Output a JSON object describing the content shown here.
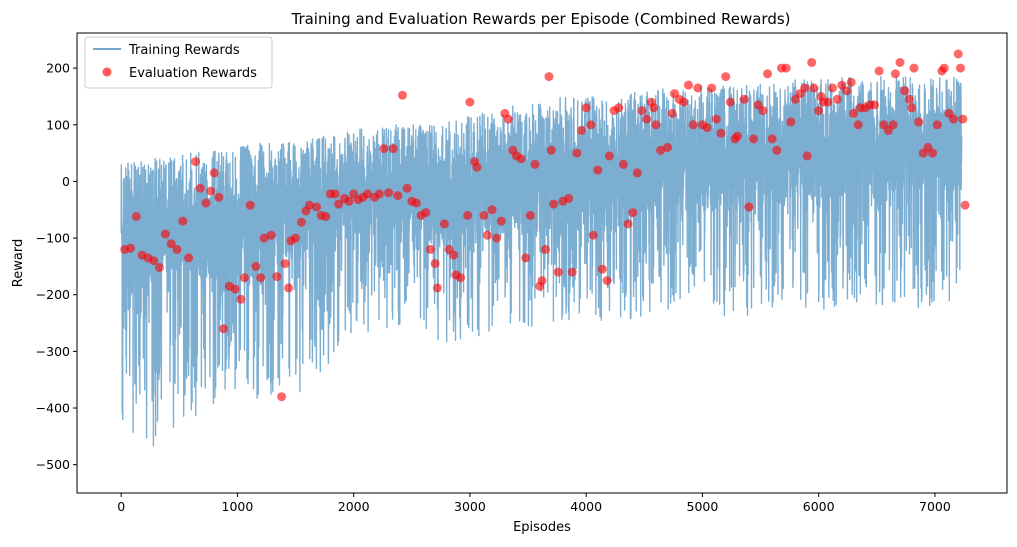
{
  "chart_data": {
    "type": "line",
    "title": "Training and Evaluation Rewards per Episode (Combined Rewards)",
    "xlabel": "Episodes",
    "ylabel": "Reward",
    "xlim": [
      -380,
      7620
    ],
    "ylim": [
      -550,
      262
    ],
    "x_ticks": [
      0,
      1000,
      2000,
      3000,
      4000,
      5000,
      6000,
      7000
    ],
    "y_ticks": [
      -500,
      -400,
      -300,
      -200,
      -100,
      0,
      100,
      200
    ],
    "grid": false,
    "legend_position": "top-left",
    "colors": {
      "training": "#75aad0",
      "evaluation": "#ff0000"
    },
    "series": [
      {
        "name": "Training Rewards",
        "kind": "line",
        "x": [
          0,
          250,
          500,
          750,
          1000,
          1250,
          1500,
          1750,
          2000,
          2250,
          2500,
          2750,
          3000,
          3250,
          3500,
          3750,
          4000,
          4250,
          4500,
          4750,
          5000,
          5250,
          5500,
          5750,
          6000,
          6250,
          6500,
          6750,
          7000,
          7230
        ],
        "center": [
          -145,
          -105,
          -85,
          -90,
          -95,
          -80,
          -60,
          -45,
          -30,
          -25,
          -25,
          -40,
          -30,
          -15,
          -15,
          -10,
          0,
          10,
          15,
          20,
          25,
          30,
          30,
          40,
          45,
          50,
          55,
          55,
          55,
          55
        ],
        "band_low": [
          -480,
          -470,
          -450,
          -400,
          -380,
          -390,
          -380,
          -330,
          -280,
          -260,
          -270,
          -290,
          -280,
          -260,
          -260,
          -250,
          -240,
          -250,
          -240,
          -250,
          -240,
          -240,
          -240,
          -230,
          -230,
          -240,
          -220,
          -230,
          -220,
          -220
        ],
        "band_high": [
          30,
          40,
          50,
          60,
          60,
          70,
          70,
          80,
          90,
          100,
          100,
          100,
          120,
          130,
          140,
          150,
          150,
          150,
          160,
          170,
          170,
          170,
          175,
          180,
          180,
          185,
          185,
          185,
          185,
          185
        ],
        "min": -513,
        "max": 198
      },
      {
        "name": "Evaluation Rewards",
        "kind": "scatter",
        "points": [
          [
            30,
            -120
          ],
          [
            80,
            -118
          ],
          [
            130,
            -62
          ],
          [
            180,
            -130
          ],
          [
            230,
            -135
          ],
          [
            280,
            -140
          ],
          [
            330,
            -152
          ],
          [
            380,
            -93
          ],
          [
            430,
            -110
          ],
          [
            480,
            -120
          ],
          [
            530,
            -70
          ],
          [
            580,
            -135
          ],
          [
            640,
            35
          ],
          [
            680,
            -12
          ],
          [
            730,
            -38
          ],
          [
            770,
            -17
          ],
          [
            800,
            15
          ],
          [
            840,
            -28
          ],
          [
            880,
            -260
          ],
          [
            930,
            -185
          ],
          [
            980,
            -190
          ],
          [
            1030,
            -208
          ],
          [
            1060,
            -170
          ],
          [
            1110,
            -42
          ],
          [
            1160,
            -150
          ],
          [
            1200,
            -170
          ],
          [
            1230,
            -100
          ],
          [
            1290,
            -95
          ],
          [
            1340,
            -168
          ],
          [
            1380,
            -380
          ],
          [
            1410,
            -145
          ],
          [
            1440,
            -188
          ],
          [
            1460,
            -105
          ],
          [
            1500,
            -100
          ],
          [
            1550,
            -72
          ],
          [
            1590,
            -52
          ],
          [
            1620,
            -42
          ],
          [
            1680,
            -45
          ],
          [
            1720,
            -60
          ],
          [
            1760,
            -62
          ],
          [
            1800,
            -22
          ],
          [
            1840,
            -22
          ],
          [
            1870,
            -40
          ],
          [
            1920,
            -30
          ],
          [
            1960,
            -35
          ],
          [
            2000,
            -22
          ],
          [
            2040,
            -32
          ],
          [
            2080,
            -28
          ],
          [
            2120,
            -22
          ],
          [
            2180,
            -28
          ],
          [
            2220,
            -22
          ],
          [
            2260,
            58
          ],
          [
            2300,
            -20
          ],
          [
            2340,
            58
          ],
          [
            2380,
            -25
          ],
          [
            2420,
            152
          ],
          [
            2460,
            -12
          ],
          [
            2500,
            -35
          ],
          [
            2540,
            -38
          ],
          [
            2580,
            -60
          ],
          [
            2620,
            -55
          ],
          [
            2660,
            -120
          ],
          [
            2700,
            -145
          ],
          [
            2720,
            -188
          ],
          [
            2780,
            -75
          ],
          [
            2820,
            -120
          ],
          [
            2860,
            -130
          ],
          [
            2880,
            -165
          ],
          [
            2920,
            -170
          ],
          [
            2980,
            -60
          ],
          [
            3000,
            140
          ],
          [
            3040,
            35
          ],
          [
            3060,
            25
          ],
          [
            3120,
            -60
          ],
          [
            3150,
            -95
          ],
          [
            3190,
            -50
          ],
          [
            3230,
            -100
          ],
          [
            3270,
            -70
          ],
          [
            3300,
            120
          ],
          [
            3330,
            110
          ],
          [
            3370,
            55
          ],
          [
            3400,
            45
          ],
          [
            3440,
            40
          ],
          [
            3480,
            -135
          ],
          [
            3520,
            -60
          ],
          [
            3560,
            30
          ],
          [
            3600,
            -185
          ],
          [
            3620,
            -175
          ],
          [
            3650,
            -120
          ],
          [
            3680,
            185
          ],
          [
            3700,
            55
          ],
          [
            3720,
            -40
          ],
          [
            3760,
            -160
          ],
          [
            3800,
            -35
          ],
          [
            3850,
            -30
          ],
          [
            3880,
            -160
          ],
          [
            3920,
            50
          ],
          [
            3960,
            90
          ],
          [
            4000,
            130
          ],
          [
            4040,
            100
          ],
          [
            4060,
            -95
          ],
          [
            4100,
            20
          ],
          [
            4140,
            -155
          ],
          [
            4180,
            -175
          ],
          [
            4200,
            45
          ],
          [
            4240,
            125
          ],
          [
            4280,
            130
          ],
          [
            4320,
            30
          ],
          [
            4360,
            -75
          ],
          [
            4400,
            -55
          ],
          [
            4440,
            15
          ],
          [
            4480,
            125
          ],
          [
            4520,
            110
          ],
          [
            4560,
            140
          ],
          [
            4580,
            130
          ],
          [
            4600,
            100
          ],
          [
            4640,
            55
          ],
          [
            4700,
            60
          ],
          [
            4740,
            120
          ],
          [
            4760,
            155
          ],
          [
            4800,
            145
          ],
          [
            4840,
            140
          ],
          [
            4880,
            170
          ],
          [
            4920,
            100
          ],
          [
            4960,
            165
          ],
          [
            5000,
            100
          ],
          [
            5040,
            95
          ],
          [
            5080,
            165
          ],
          [
            5120,
            110
          ],
          [
            5160,
            85
          ],
          [
            5200,
            185
          ],
          [
            5240,
            140
          ],
          [
            5280,
            75
          ],
          [
            5300,
            80
          ],
          [
            5360,
            145
          ],
          [
            5400,
            -45
          ],
          [
            5440,
            75
          ],
          [
            5480,
            135
          ],
          [
            5520,
            125
          ],
          [
            5560,
            190
          ],
          [
            5600,
            75
          ],
          [
            5640,
            55
          ],
          [
            5680,
            200
          ],
          [
            5720,
            200
          ],
          [
            5760,
            105
          ],
          [
            5800,
            145
          ],
          [
            5840,
            155
          ],
          [
            5880,
            165
          ],
          [
            5900,
            45
          ],
          [
            5940,
            210
          ],
          [
            5960,
            165
          ],
          [
            6000,
            125
          ],
          [
            6020,
            150
          ],
          [
            6040,
            140
          ],
          [
            6080,
            140
          ],
          [
            6120,
            165
          ],
          [
            6160,
            145
          ],
          [
            6200,
            170
          ],
          [
            6240,
            160
          ],
          [
            6280,
            175
          ],
          [
            6300,
            120
          ],
          [
            6340,
            100
          ],
          [
            6360,
            130
          ],
          [
            6400,
            130
          ],
          [
            6440,
            135
          ],
          [
            6480,
            135
          ],
          [
            6520,
            195
          ],
          [
            6560,
            100
          ],
          [
            6600,
            90
          ],
          [
            6640,
            100
          ],
          [
            6660,
            190
          ],
          [
            6700,
            210
          ],
          [
            6740,
            160
          ],
          [
            6780,
            145
          ],
          [
            6800,
            130
          ],
          [
            6820,
            200
          ],
          [
            6860,
            105
          ],
          [
            6900,
            50
          ],
          [
            6940,
            60
          ],
          [
            6980,
            50
          ],
          [
            7020,
            100
          ],
          [
            7060,
            195
          ],
          [
            7080,
            200
          ],
          [
            7120,
            120
          ],
          [
            7160,
            110
          ],
          [
            7200,
            225
          ],
          [
            7220,
            200
          ],
          [
            7240,
            110
          ],
          [
            7260,
            -42
          ]
        ]
      }
    ]
  }
}
